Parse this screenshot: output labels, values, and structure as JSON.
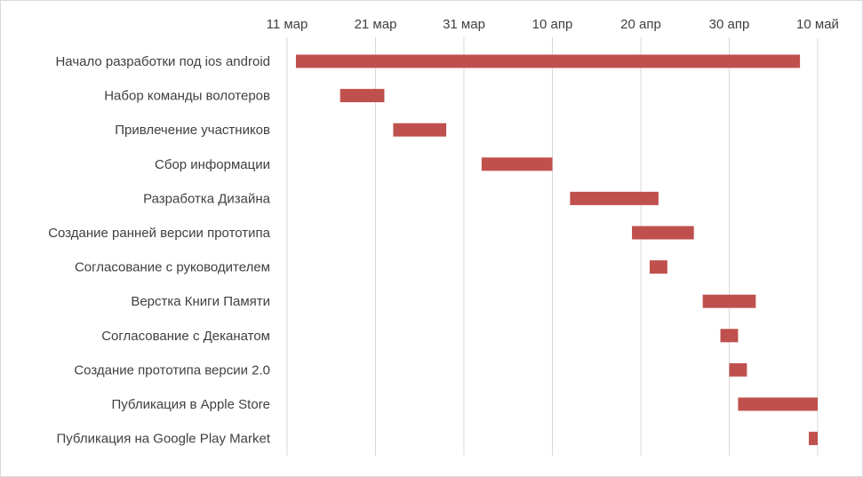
{
  "chart_data": {
    "type": "bar",
    "orientation": "horizontal-gantt",
    "x_axis": {
      "type": "date",
      "position": "top",
      "min": "2015-03-11",
      "max": "2015-05-10",
      "tick_labels": [
        "11 мар",
        "21 мар",
        "31 мар",
        "10 апр",
        "20 апр",
        "30 апр",
        "10 май"
      ]
    },
    "grid": "vertical",
    "tasks": [
      {
        "label": "Начало разработки под ios android",
        "start": "2015-03-12",
        "end": "2015-05-08"
      },
      {
        "label": "Набор команды волотеров",
        "start": "2015-03-17",
        "end": "2015-03-22"
      },
      {
        "label": "Привлечение участников",
        "start": "2015-03-23",
        "end": "2015-03-29"
      },
      {
        "label": "Сбор информации",
        "start": "2015-04-02",
        "end": "2015-04-10"
      },
      {
        "label": "Разработка Дизайна",
        "start": "2015-04-12",
        "end": "2015-04-22"
      },
      {
        "label": "Создание ранней версии прототипа",
        "start": "2015-04-19",
        "end": "2015-04-26"
      },
      {
        "label": "Согласование с руководителем",
        "start": "2015-04-21",
        "end": "2015-04-23"
      },
      {
        "label": "Верстка Книги Памяти",
        "start": "2015-04-27",
        "end": "2015-05-03"
      },
      {
        "label": "Согласование с Деканатом",
        "start": "2015-04-29",
        "end": "2015-05-01"
      },
      {
        "label": "Создание прототипа версии 2.0",
        "start": "2015-04-30",
        "end": "2015-05-02"
      },
      {
        "label": "Публикация в Apple Store",
        "start": "2015-05-01",
        "end": "2015-05-10"
      },
      {
        "label": "Публикация на Google Play Market",
        "start": "2015-05-09",
        "end": "2015-05-10"
      }
    ],
    "colors": {
      "bar": "#c0504d",
      "grid": "#d9d9d9",
      "text": "#404040"
    }
  }
}
